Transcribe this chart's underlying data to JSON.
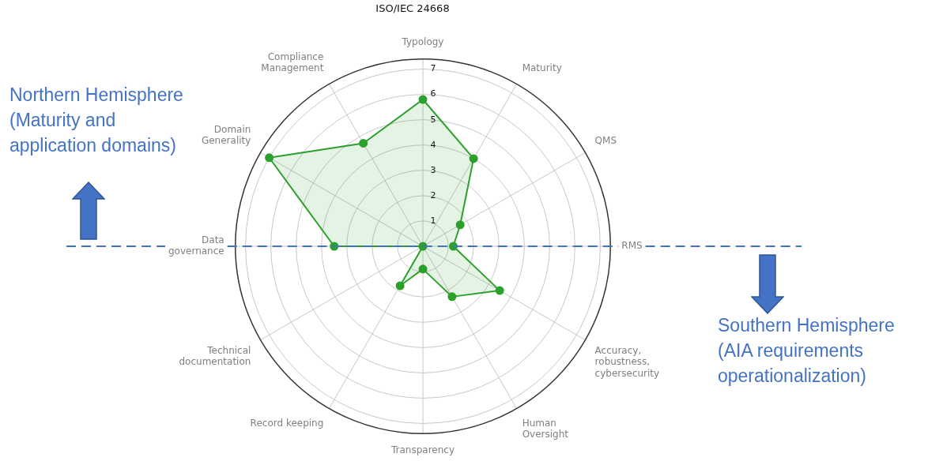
{
  "chart_data": {
    "type": "radar",
    "title": "ISO/IEC 24668",
    "categories": [
      "Typology",
      "Maturity",
      "QMS",
      "RMS",
      "Accuracy,\nrobustness,\ncybersecurity",
      "Human\nOversight",
      "Transparency",
      "Record keeping",
      "Technical\ndocumentation",
      "Data\ngovernance",
      "Domain\nGenerality",
      "Compliance\nManagement"
    ],
    "series": [
      {
        "color": "#2ca02c",
        "values": [
          5.8,
          4.0,
          1.7,
          1.2,
          3.5,
          2.3,
          0.9,
          1.8,
          0,
          3.5,
          7,
          4.7
        ]
      }
    ],
    "ylim": [
      0,
      7.4
    ],
    "yticks": [
      1,
      2,
      3,
      4,
      5,
      6,
      7
    ],
    "grid": true,
    "legend": false,
    "marker": "circle",
    "annotations": [
      "Northern Hemisphere\n(Maturity and\napplication domains)",
      "Southern Hemisphere\n(AIA requirements\noperationalization)"
    ]
  }
}
